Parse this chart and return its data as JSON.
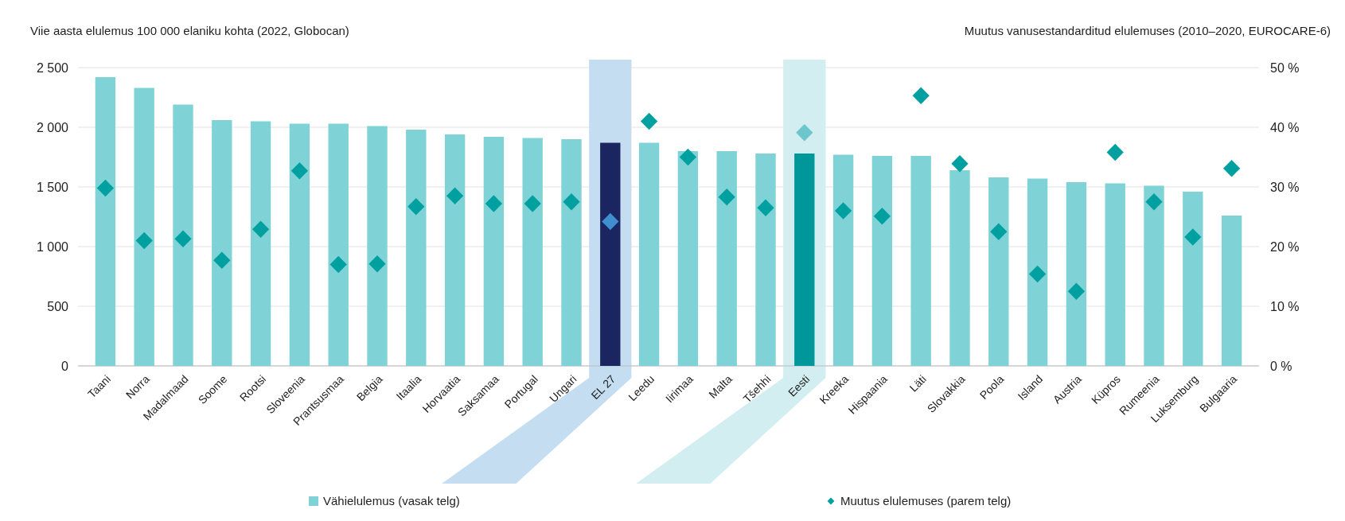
{
  "chart_data": {
    "type": "bar",
    "ylabel": "Viie aasta elulemus 100 000 elaniku kohta (2022, Globocan)",
    "y2label": "Muutus vanusestandarditud elulemuses (2010–2020, EUROCARE-6)",
    "categories": [
      "Taani",
      "Norra",
      "Madalmaad",
      "Soome",
      "Rootsi",
      "Sloveenia",
      "Prantsusmaa",
      "Belgia",
      "Itaalia",
      "Horvaatia",
      "Saksamaa",
      "Portugal",
      "Ungari",
      "EL 27",
      "Leedu",
      "Iirimaa",
      "Malta",
      "Tšehhi",
      "Eesti",
      "Kreeka",
      "Hispaania",
      "Läti",
      "Slovakkia",
      "Poola",
      "Island",
      "Austria",
      "Küpros",
      "Rumeenia",
      "Luksemburg",
      "Bulgaaria"
    ],
    "series": [
      {
        "name": "Vähielulemus (vasak telg)",
        "color": "#7fd3d6",
        "colors": [
          "#7fd3d6",
          "#7fd3d6",
          "#7fd3d6",
          "#7fd3d6",
          "#7fd3d6",
          "#7fd3d6",
          "#7fd3d6",
          "#7fd3d6",
          "#7fd3d6",
          "#7fd3d6",
          "#7fd3d6",
          "#7fd3d6",
          "#7fd3d6",
          "#1b2560",
          "#7fd3d6",
          "#7fd3d6",
          "#7fd3d6",
          "#7fd3d6",
          "#00979b",
          "#7fd3d6",
          "#7fd3d6",
          "#7fd3d6",
          "#7fd3d6",
          "#7fd3d6",
          "#7fd3d6",
          "#7fd3d6",
          "#7fd3d6",
          "#7fd3d6",
          "#7fd3d6",
          "#7fd3d6"
        ],
        "values": [
          2420,
          2330,
          2190,
          2060,
          2050,
          2030,
          2030,
          2010,
          1980,
          1940,
          1920,
          1910,
          1900,
          1870,
          1870,
          1800,
          1800,
          1780,
          1780,
          1770,
          1760,
          1760,
          1640,
          1580,
          1570,
          1540,
          1530,
          1510,
          1460,
          1260
        ]
      },
      {
        "name": "Muutus elulemuses (parem telg)",
        "type": "scatter",
        "axis": "y2",
        "marker": "diamond",
        "color": "#00a0a0",
        "colors": [
          "#00a0a0",
          "#00a0a0",
          "#00a0a0",
          "#00a0a0",
          "#00a0a0",
          "#00a0a0",
          "#00a0a0",
          "#00a0a0",
          "#00a0a0",
          "#00a0a0",
          "#00a0a0",
          "#00a0a0",
          "#00a0a0",
          "#3e8ed0",
          "#00a0a0",
          "#00a0a0",
          "#00a0a0",
          "#00a0a0",
          "#6cc6cc",
          "#00a0a0",
          "#00a0a0",
          "#00a0a0",
          "#00a0a0",
          "#00a0a0",
          "#00a0a0",
          "#00a0a0",
          "#00a0a0",
          "#00a0a0",
          "#00a0a0",
          "#00a0a0"
        ],
        "values": [
          29.8,
          21,
          21.3,
          17.7,
          22.9,
          32.7,
          17,
          17.1,
          26.7,
          28.5,
          27.2,
          27.2,
          27.5,
          24.2,
          41,
          35,
          28.3,
          26.5,
          39.1,
          26,
          25.1,
          45.3,
          33.9,
          22.5,
          15.4,
          12.5,
          35.8,
          27.5,
          21.6,
          33.1
        ]
      }
    ],
    "ylim": [
      0,
      2500
    ],
    "yticks": [
      0,
      500,
      {
        "value": 1000,
        "label": "1 000"
      },
      {
        "value": 1500,
        "label": "1 500"
      },
      {
        "value": 2000,
        "label": "2 000"
      },
      {
        "value": 2500,
        "label": "2 500"
      }
    ],
    "y2lim": [
      0,
      50
    ],
    "y2ticks": [
      {
        "value": 0,
        "label": "0 %"
      },
      {
        "value": 10,
        "label": "10 %"
      },
      {
        "value": 20,
        "label": "20 %"
      },
      {
        "value": 30,
        "label": "30 %"
      },
      {
        "value": 40,
        "label": "40 %"
      },
      {
        "value": 50,
        "label": "50 %"
      }
    ],
    "grid": "y",
    "legend": "bottom"
  }
}
